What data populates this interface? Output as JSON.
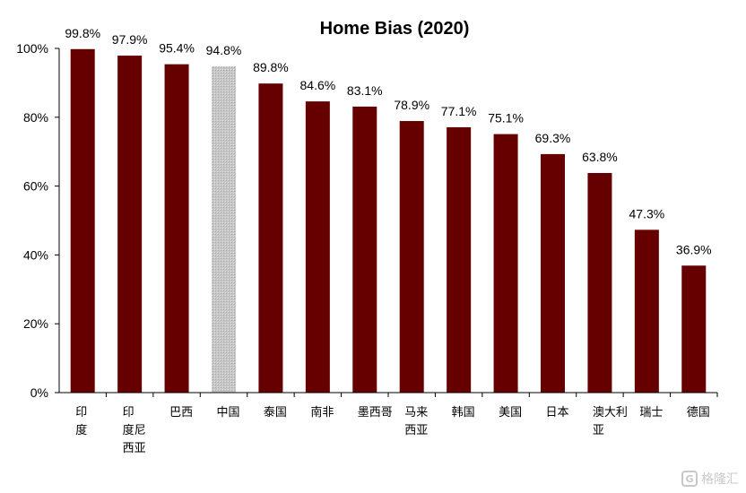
{
  "chart_data": {
    "type": "bar",
    "title": "Home Bias (2020)",
    "categories": [
      "印度",
      "印度尼西亚",
      "巴西",
      "中国",
      "泰国",
      "南非",
      "墨西哥",
      "马来西亚",
      "韩国",
      "美国",
      "日本",
      "澳大利亚",
      "瑞士",
      "德国"
    ],
    "category_lines": [
      [
        "印",
        "度"
      ],
      [
        "印",
        "度尼",
        "西亚"
      ],
      [
        "巴西"
      ],
      [
        "中国"
      ],
      [
        "泰国"
      ],
      [
        "南非"
      ],
      [
        "墨西哥"
      ],
      [
        "马来",
        "西亚"
      ],
      [
        "韩国"
      ],
      [
        "美国"
      ],
      [
        "日本"
      ],
      [
        "澳大利",
        "亚"
      ],
      [
        "瑞士"
      ],
      [
        "德国"
      ]
    ],
    "values": [
      99.8,
      97.9,
      95.4,
      94.8,
      89.8,
      84.6,
      83.1,
      78.9,
      77.1,
      75.1,
      69.3,
      63.8,
      47.3,
      36.9
    ],
    "value_labels": [
      "99.8%",
      "97.9%",
      "95.4%",
      "94.8%",
      "89.8%",
      "84.6%",
      "83.1%",
      "78.9%",
      "77.1%",
      "75.1%",
      "69.3%",
      "63.8%",
      "47.3%",
      "36.9%"
    ],
    "highlight_category": "中国",
    "ylim": [
      0,
      100
    ],
    "yticks": [
      "0%",
      "20%",
      "40%",
      "60%",
      "80%",
      "100%"
    ],
    "xlabel": "",
    "ylabel": "",
    "grid": false,
    "legend": "none",
    "colors": {
      "bar": "#660000",
      "highlight": "#c6c6c6"
    }
  },
  "watermark": {
    "icon": "G",
    "text": "格隆汇"
  }
}
